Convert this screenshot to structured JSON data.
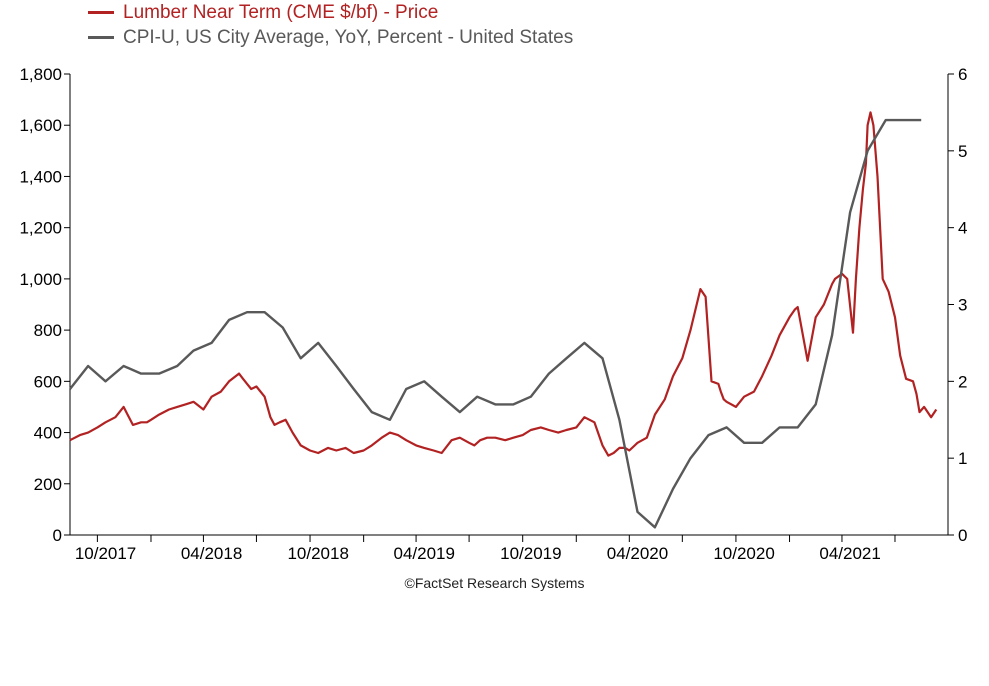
{
  "colors": {
    "lumber": "#b22222",
    "cpi": "#595959",
    "axis": "#000000",
    "background": "#ffffff"
  },
  "legend": [
    {
      "label": "Lumber Near Term (CME $/bf) - Price"
    },
    {
      "label": "CPI-U, US City Average, YoY, Percent - United States"
    }
  ],
  "credit": "©FactSet Research Systems",
  "chart_data": {
    "type": "line",
    "title": "",
    "xlabel": "",
    "x_ticks": [
      "10/2017",
      "04/2018",
      "10/2018",
      "04/2019",
      "10/2019",
      "04/2020",
      "10/2020",
      "04/2021"
    ],
    "x_range": [
      "2017-08-15",
      "2021-09-30"
    ],
    "grid": false,
    "legend_position": "top-left",
    "y_left": {
      "label": "",
      "range": [
        0,
        1800
      ],
      "ticks": [
        "0",
        "200",
        "400",
        "600",
        "800",
        "1,000",
        "1,200",
        "1,400",
        "1,600",
        "1,800"
      ]
    },
    "y_right": {
      "label": "",
      "range": [
        0,
        6
      ],
      "ticks": [
        "0",
        "1",
        "2",
        "3",
        "4",
        "5",
        "6"
      ]
    },
    "series": [
      {
        "name": "Lumber Near Term (CME $/bf) - Price",
        "axis": "left",
        "x": [
          "2017-08-15",
          "2017-09-01",
          "2017-09-15",
          "2017-10-01",
          "2017-10-15",
          "2017-11-01",
          "2017-11-15",
          "2017-12-01",
          "2017-12-15",
          "2017-12-25",
          "2018-01-01",
          "2018-01-15",
          "2018-02-01",
          "2018-02-15",
          "2018-03-01",
          "2018-03-15",
          "2018-04-01",
          "2018-04-15",
          "2018-05-01",
          "2018-05-15",
          "2018-06-01",
          "2018-06-08",
          "2018-06-15",
          "2018-06-22",
          "2018-07-01",
          "2018-07-15",
          "2018-07-25",
          "2018-08-01",
          "2018-08-10",
          "2018-08-20",
          "2018-09-01",
          "2018-09-15",
          "2018-10-01",
          "2018-10-15",
          "2018-11-01",
          "2018-11-15",
          "2018-12-01",
          "2018-12-15",
          "2019-01-01",
          "2019-01-15",
          "2019-02-01",
          "2019-02-15",
          "2019-03-01",
          "2019-03-15",
          "2019-04-01",
          "2019-04-15",
          "2019-05-01",
          "2019-05-15",
          "2019-06-01",
          "2019-06-15",
          "2019-07-01",
          "2019-07-10",
          "2019-07-20",
          "2019-08-01",
          "2019-08-15",
          "2019-09-01",
          "2019-09-15",
          "2019-10-01",
          "2019-10-15",
          "2019-11-01",
          "2019-11-15",
          "2019-12-01",
          "2019-12-15",
          "2020-01-01",
          "2020-01-15",
          "2020-02-01",
          "2020-02-15",
          "2020-02-25",
          "2020-03-05",
          "2020-03-15",
          "2020-03-25",
          "2020-04-01",
          "2020-04-15",
          "2020-05-01",
          "2020-05-15",
          "2020-06-01",
          "2020-06-15",
          "2020-07-01",
          "2020-07-15",
          "2020-08-01",
          "2020-08-10",
          "2020-08-20",
          "2020-09-01",
          "2020-09-05",
          "2020-09-10",
          "2020-09-15",
          "2020-10-01",
          "2020-10-15",
          "2020-11-01",
          "2020-11-15",
          "2020-12-01",
          "2020-12-15",
          "2021-01-01",
          "2021-01-10",
          "2021-01-15",
          "2021-02-01",
          "2021-02-15",
          "2021-03-01",
          "2021-03-15",
          "2021-03-20",
          "2021-04-01",
          "2021-04-10",
          "2021-04-20",
          "2021-04-25",
          "2021-05-01",
          "2021-05-07",
          "2021-05-12",
          "2021-05-15",
          "2021-05-20",
          "2021-05-25",
          "2021-06-01",
          "2021-06-10",
          "2021-06-20",
          "2021-07-01",
          "2021-07-10",
          "2021-07-20",
          "2021-08-01",
          "2021-08-07",
          "2021-08-12",
          "2021-08-20",
          "2021-09-01",
          "2021-09-10"
        ],
        "values": [
          370,
          390,
          400,
          420,
          440,
          460,
          500,
          430,
          440,
          440,
          450,
          470,
          490,
          500,
          510,
          520,
          490,
          540,
          560,
          600,
          630,
          610,
          590,
          570,
          580,
          540,
          460,
          430,
          440,
          450,
          400,
          350,
          330,
          320,
          340,
          330,
          340,
          320,
          330,
          350,
          380,
          400,
          390,
          370,
          350,
          340,
          330,
          320,
          370,
          380,
          360,
          350,
          370,
          380,
          380,
          370,
          380,
          390,
          410,
          420,
          410,
          400,
          410,
          420,
          460,
          440,
          350,
          310,
          320,
          340,
          340,
          330,
          360,
          380,
          470,
          530,
          620,
          690,
          800,
          960,
          930,
          600,
          590,
          560,
          530,
          520,
          500,
          540,
          560,
          620,
          700,
          780,
          850,
          880,
          890,
          680,
          850,
          900,
          980,
          1000,
          1020,
          1000,
          790,
          1000,
          1200,
          1350,
          1450,
          1600,
          1650,
          1600,
          1400,
          1000,
          950,
          850,
          700,
          610,
          600,
          550,
          480,
          500,
          460,
          490
        ]
      },
      {
        "name": "CPI-U, US City Average, YoY, Percent - United States",
        "axis": "right",
        "x": [
          "2017-08-15",
          "2017-09-15",
          "2017-10-15",
          "2017-11-15",
          "2017-12-15",
          "2018-01-15",
          "2018-02-15",
          "2018-03-15",
          "2018-04-15",
          "2018-05-15",
          "2018-06-15",
          "2018-07-15",
          "2018-08-15",
          "2018-09-15",
          "2018-10-15",
          "2018-11-15",
          "2018-12-15",
          "2019-01-15",
          "2019-02-15",
          "2019-03-15",
          "2019-04-15",
          "2019-05-15",
          "2019-06-15",
          "2019-07-15",
          "2019-08-15",
          "2019-09-15",
          "2019-10-15",
          "2019-11-15",
          "2019-12-15",
          "2020-01-15",
          "2020-02-15",
          "2020-03-15",
          "2020-04-15",
          "2020-05-15",
          "2020-06-15",
          "2020-07-15",
          "2020-08-15",
          "2020-09-15",
          "2020-10-15",
          "2020-11-15",
          "2020-12-15",
          "2021-01-15",
          "2021-02-15",
          "2021-03-15",
          "2021-04-15",
          "2021-05-15",
          "2021-06-15",
          "2021-07-15",
          "2021-08-15"
        ],
        "values": [
          1.9,
          2.2,
          2.0,
          2.2,
          2.1,
          2.1,
          2.2,
          2.4,
          2.5,
          2.8,
          2.9,
          2.9,
          2.7,
          2.3,
          2.5,
          2.2,
          1.9,
          1.6,
          1.5,
          1.9,
          2.0,
          1.8,
          1.6,
          1.8,
          1.7,
          1.7,
          1.8,
          2.1,
          2.3,
          2.5,
          2.3,
          1.5,
          0.3,
          0.1,
          0.6,
          1.0,
          1.3,
          1.4,
          1.2,
          1.2,
          1.4,
          1.4,
          1.7,
          2.6,
          4.2,
          5.0,
          5.4,
          5.4,
          5.4
        ]
      }
    ]
  }
}
